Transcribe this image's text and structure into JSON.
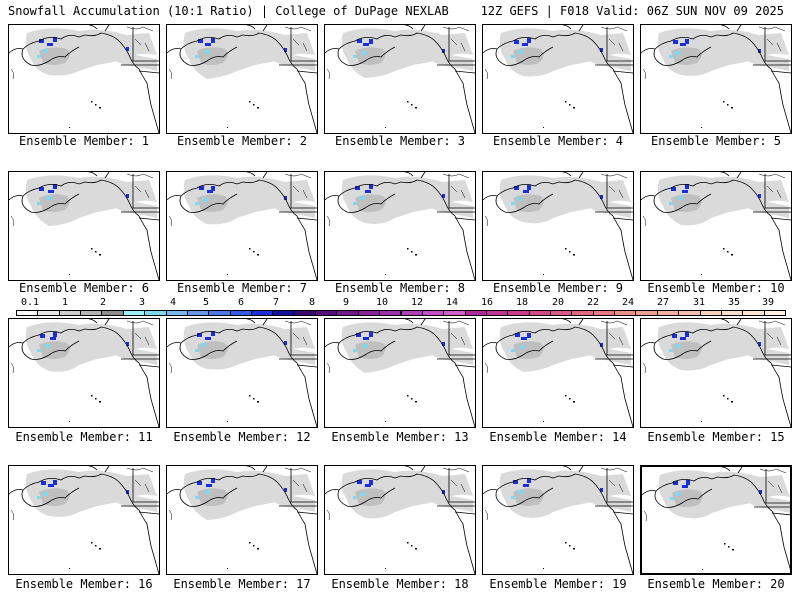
{
  "header": {
    "left": "Snowfall Accumulation (10:1 Ratio) | College of DuPage NEXLAB",
    "right": "12Z GEFS | F018 Valid: 06Z SUN NOV 09 2025"
  },
  "members": [
    {
      "label": "Ensemble Member: 1"
    },
    {
      "label": "Ensemble Member: 2"
    },
    {
      "label": "Ensemble Member: 3"
    },
    {
      "label": "Ensemble Member: 4"
    },
    {
      "label": "Ensemble Member: 5"
    },
    {
      "label": "Ensemble Member: 6"
    },
    {
      "label": "Ensemble Member: 7"
    },
    {
      "label": "Ensemble Member: 8"
    },
    {
      "label": "Ensemble Member: 9"
    },
    {
      "label": "Ensemble Member: 10"
    },
    {
      "label": "Ensemble Member: 11"
    },
    {
      "label": "Ensemble Member: 12"
    },
    {
      "label": "Ensemble Member: 13"
    },
    {
      "label": "Ensemble Member: 14"
    },
    {
      "label": "Ensemble Member: 15"
    },
    {
      "label": "Ensemble Member: 16"
    },
    {
      "label": "Ensemble Member: 17"
    },
    {
      "label": "Ensemble Member: 18"
    },
    {
      "label": "Ensemble Member: 19"
    },
    {
      "label": "Ensemble Member: 20"
    }
  ],
  "colorbar": {
    "labels": [
      "0.1",
      "1",
      "2",
      "3",
      "4",
      "5",
      "6",
      "7",
      "8",
      "9",
      "10",
      "12",
      "14",
      "16",
      "18",
      "20",
      "22",
      "24",
      "27",
      "31",
      "35",
      "39"
    ],
    "colors": [
      "#ffffff",
      "#e6e6e6",
      "#cfcfcf",
      "#b4b4b4",
      "#8c8c8c",
      "#9ef0ff",
      "#7fd8f0",
      "#7ab8ee",
      "#6a98e8",
      "#4e78e0",
      "#3558e6",
      "#1a2fd8",
      "#1010a0",
      "#3a0a6e",
      "#55107e",
      "#6e1a8c",
      "#85259c",
      "#9a30aa",
      "#b040b8",
      "#c250c2",
      "#d060c8",
      "#b0289a",
      "#c03496",
      "#ca3c8e",
      "#d24888",
      "#d85a86",
      "#e06a82",
      "#e67c82",
      "#ec9088",
      "#f0a090",
      "#f4b0a0",
      "#f6c0ae",
      "#f8d0bc",
      "#fadcca",
      "#fce6d6",
      "#fef0e4"
    ]
  },
  "colors": {
    "snow_light": "#d4d4d4",
    "snow_blue": "#1a2fd8",
    "snow_cyan": "#7fd8f0",
    "coast": "#000000"
  }
}
